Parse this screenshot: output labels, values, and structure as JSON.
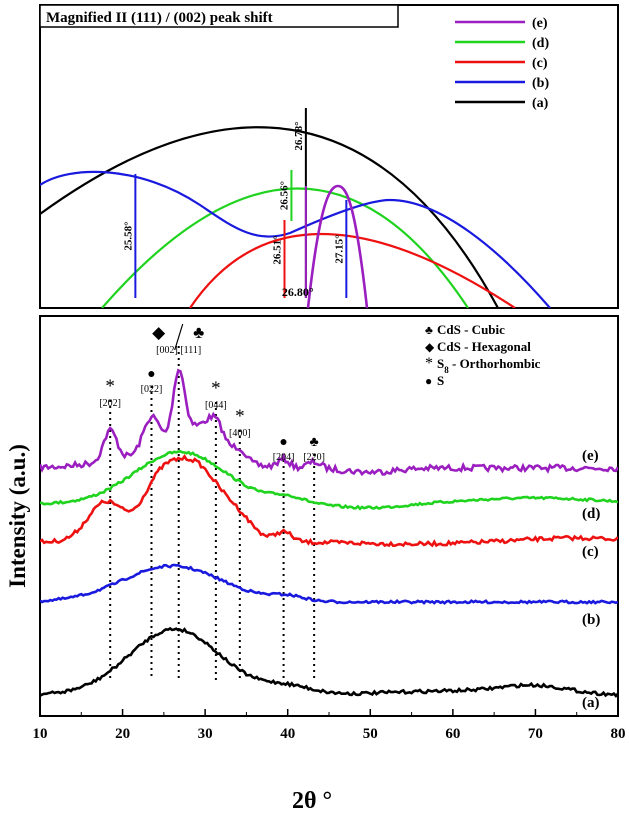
{
  "chart_data": [
    {
      "type": "line",
      "title": "Magnified II (111) / (002) peak shift",
      "legend": {
        "placement": "top-right",
        "entries": [
          {
            "label": "(e)",
            "color": "#9b1fc0"
          },
          {
            "label": "(d)",
            "color": "#1fd31f"
          },
          {
            "label": "(c)",
            "color": "#ee1111"
          },
          {
            "label": "(b)",
            "color": "#1a1adf"
          },
          {
            "label": "(a)",
            "color": "#000000"
          }
        ]
      },
      "peak_labels": [
        {
          "series": "(a)",
          "text": "26.78°",
          "x": 46.0,
          "y_top": 108,
          "y_bottom": 298,
          "color": "#000000"
        },
        {
          "series": "(d)",
          "text": "26.56°",
          "x": 43.5,
          "y_top": 170,
          "y_bottom": 221,
          "color": "#1fd31f"
        },
        {
          "series": "(b)",
          "text": "25.58°",
          "x": 16.5,
          "y_top": 174,
          "y_bottom": 298,
          "color": "#1a1adf"
        },
        {
          "series": "(b)",
          "text": "27.15°",
          "x": 53.0,
          "y_top": 200,
          "y_bottom": 298,
          "color": "#1a1adf"
        },
        {
          "series": "(c)",
          "text": "26.51°",
          "x": 42.3,
          "y_top": 220,
          "y_bottom": 298,
          "color": "#ee1111"
        },
        {
          "series": "(e)",
          "text": "26.80°",
          "x": 46.0,
          "y_top": 186,
          "y_bottom": 298,
          "color": "#9b1fc0"
        }
      ]
    },
    {
      "type": "line",
      "xlabel": "2θ °",
      "ylabel": "Intensity (a.u.)",
      "xlim": [
        10,
        80
      ],
      "xticks": [
        10,
        20,
        30,
        40,
        50,
        60,
        70,
        80
      ],
      "series": [
        {
          "name": "(e)",
          "color": "#9b1fc0"
        },
        {
          "name": "(d)",
          "color": "#1fd31f"
        },
        {
          "name": "(c)",
          "color": "#ee1111"
        },
        {
          "name": "(b)",
          "color": "#1a1adf"
        },
        {
          "name": "(a)",
          "color": "#000000"
        }
      ],
      "phase_legend": [
        {
          "symbol": "♣",
          "label": "CdS - Cubic"
        },
        {
          "symbol": "◆",
          "label": "CdS - Hexagonal"
        },
        {
          "symbol": "*",
          "label": "S",
          "sub": "8",
          "suffix": " - Orthorhombic"
        },
        {
          "symbol": "●",
          "label": "S"
        }
      ],
      "peak_markers": [
        {
          "x": 18.5,
          "symbol": "*",
          "hkl": "[202]"
        },
        {
          "x": 23.5,
          "symbol": "●",
          "hkl": "[022]"
        },
        {
          "x": 26.8,
          "symbol": "◆ / ♣",
          "hkl": "[002]  [111]"
        },
        {
          "x": 31.3,
          "symbol": "*",
          "hkl": "[044]"
        },
        {
          "x": 34.2,
          "symbol": "*",
          "hkl": "[400]"
        },
        {
          "x": 39.5,
          "symbol": "●",
          "hkl": "[204]"
        },
        {
          "x": 43.2,
          "symbol": "♣",
          "hkl": "[220]"
        }
      ]
    }
  ]
}
